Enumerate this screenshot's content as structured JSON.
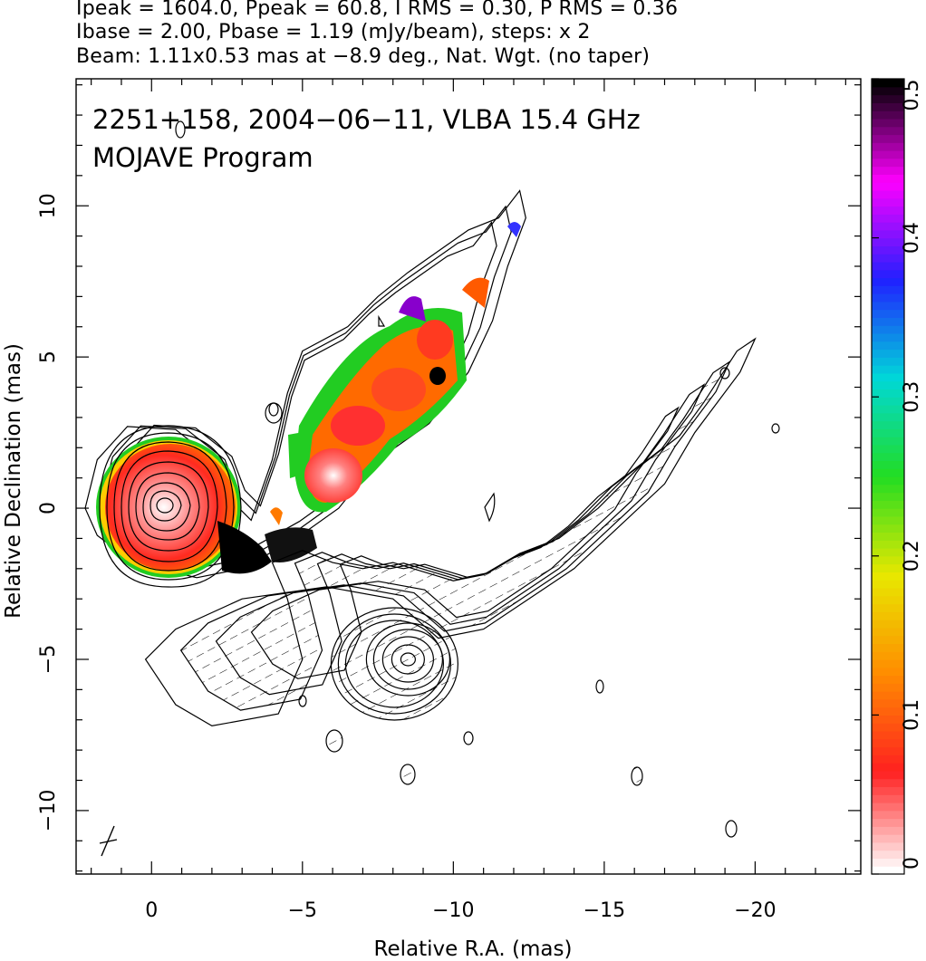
{
  "header": {
    "line1": "Ipeak = 1604.0, Ppeak = 60.8, I RMS = 0.30, P RMS = 0.36",
    "line2": "Ibase = 2.00, Pbase = 1.19 (mJy/beam), steps: x 2",
    "line3": "Beam: 1.11x0.53 mas at −8.9 deg., Nat. Wgt. (no taper)"
  },
  "chart_data": {
    "type": "heatmap",
    "xlabel": "Relative R.A. (mas)",
    "ylabel": "Relative Declination (mas)",
    "xlim": [
      2.5,
      -23.5
    ],
    "ylim": [
      -12.1,
      14.2
    ],
    "x_ticks": [
      0,
      -5,
      -10,
      -15,
      -20
    ],
    "x_tick_labels": [
      "0",
      "−5",
      "−10",
      "−15",
      "−20"
    ],
    "y_ticks": [
      -10,
      -5,
      0,
      5,
      10
    ],
    "y_tick_labels": [
      "−10",
      "−5",
      "0",
      "5",
      "10"
    ],
    "annotation_line1": "2251+158, 2004−06−11, VLBA 15.4 GHz",
    "annotation_line2": "MOJAVE Program",
    "colorbar": {
      "range": [
        0,
        0.5
      ],
      "ticks": [
        0,
        0.1,
        0.2,
        0.3,
        0.4,
        0.5
      ],
      "tick_labels": [
        "0",
        "0.1",
        "0.2",
        "0.3",
        "0.4",
        "0.5"
      ],
      "colors": [
        "#ffffff",
        "#ff2020",
        "#ff8c00",
        "#e8e800",
        "#22dd22",
        "#00d8d8",
        "#2020ff",
        "#ff00ff",
        "#000000"
      ]
    },
    "core": {
      "x": 0.0,
      "y": 0.0
    },
    "contour_levels": [
      2,
      4,
      8,
      16,
      32,
      64,
      128,
      256,
      512,
      1024
    ],
    "upper_jet_contour": [
      [
        2.2,
        0.0
      ],
      [
        1.8,
        1.6
      ],
      [
        0.8,
        2.7
      ],
      [
        -0.8,
        2.6
      ],
      [
        -2.2,
        1.5
      ],
      [
        -2.7,
        0.2
      ],
      [
        -3.3,
        -0.4
      ],
      [
        -4.0,
        1.6
      ],
      [
        -4.5,
        3.8
      ],
      [
        -5.0,
        5.2
      ],
      [
        -6.5,
        6.0
      ],
      [
        -7.5,
        7.0
      ],
      [
        -8.5,
        7.8
      ],
      [
        -9.5,
        8.5
      ],
      [
        -10.5,
        9.2
      ],
      [
        -11.5,
        9.6
      ],
      [
        -12.2,
        10.5
      ],
      [
        -12.4,
        9.6
      ],
      [
        -11.8,
        8.0
      ],
      [
        -11.3,
        6.2
      ],
      [
        -10.5,
        4.5
      ],
      [
        -9.2,
        2.8
      ],
      [
        -7.5,
        1.6
      ],
      [
        -6.2,
        0.0
      ],
      [
        -4.8,
        -1.0
      ],
      [
        -3.0,
        -2.0
      ],
      [
        -1.5,
        -2.3
      ],
      [
        0.6,
        -1.8
      ],
      [
        1.8,
        -0.9
      ]
    ],
    "lower_jet_contour": [
      [
        -5.8,
        -2.6
      ],
      [
        -8.0,
        -3.0
      ],
      [
        -9.5,
        -4.3
      ],
      [
        -11.0,
        -4.0
      ],
      [
        -12.5,
        -3.0
      ],
      [
        -14.0,
        -2.0
      ],
      [
        -15.5,
        -0.6
      ],
      [
        -17.0,
        0.8
      ],
      [
        -18.0,
        2.5
      ],
      [
        -19.5,
        4.5
      ],
      [
        -20.0,
        5.6
      ],
      [
        -19.4,
        5.2
      ],
      [
        -18.3,
        3.5
      ],
      [
        -17.5,
        2.4
      ],
      [
        -16.2,
        1.4
      ],
      [
        -14.8,
        0.0
      ],
      [
        -13.5,
        -1.0
      ],
      [
        -12.2,
        -1.5
      ],
      [
        -11.0,
        -2.2
      ],
      [
        -10.0,
        -2.4
      ],
      [
        -9.0,
        -2.1
      ],
      [
        -8.0,
        -1.8
      ],
      [
        -7.0,
        -2.0
      ],
      [
        -6.0,
        -1.8
      ],
      [
        -5.0,
        -1.4
      ],
      [
        -4.0,
        -1.8
      ],
      [
        -4.5,
        -3.0
      ],
      [
        -5.0,
        -5.0
      ],
      [
        -4.2,
        -6.8
      ],
      [
        -2.0,
        -7.2
      ],
      [
        -0.8,
        -6.5
      ],
      [
        0.2,
        -5.0
      ],
      [
        -0.8,
        -4.0
      ],
      [
        -3.0,
        -3.0
      ],
      [
        -5.8,
        -2.6
      ]
    ]
  }
}
